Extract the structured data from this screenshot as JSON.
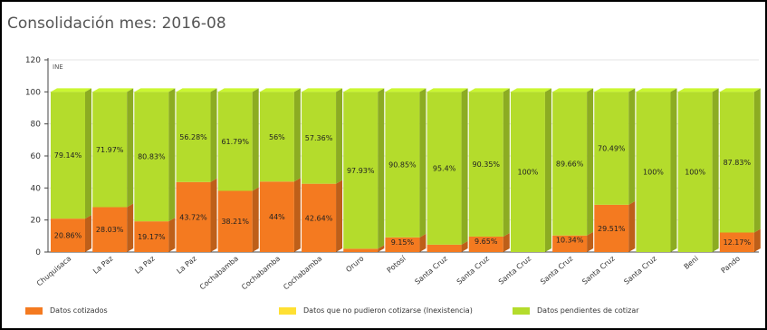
{
  "title": "Consolidación mes: 2016-08",
  "annotation": "INE",
  "colors": {
    "cotizados": "#f47a20",
    "inexistencia": "#ffe033",
    "pendientes": "#b4dc2c"
  },
  "chart_data": {
    "type": "bar",
    "stacked": true,
    "title": "Consolidación mes: 2016-08",
    "xlabel": "",
    "ylabel": "",
    "ylim": [
      0,
      120
    ],
    "yticks": [
      0,
      20,
      40,
      60,
      80,
      100,
      120
    ],
    "grid": true,
    "legend_position": "bottom",
    "categories": [
      "Chuquisaca",
      "La Paz",
      "La Paz",
      "La Paz",
      "Cochabamba",
      "Cochabamba",
      "Cochabamba",
      "Oruro",
      "Potosí",
      "Santa Cruz",
      "Santa Cruz",
      "Santa Cruz",
      "Santa Cruz",
      "Santa Cruz",
      "Santa Cruz",
      "Beni",
      "Pando"
    ],
    "series": [
      {
        "name": "Datos cotizados",
        "values": [
          20.86,
          28.03,
          19.17,
          43.72,
          38.21,
          44,
          42.64,
          2.07,
          9.15,
          4.6,
          9.65,
          0,
          10.34,
          29.51,
          0,
          0,
          12.17
        ],
        "labels": [
          "20.86%",
          "28.03%",
          "19.17%",
          "43.72%",
          "38.21%",
          "44%",
          "42.64%",
          "",
          "9.15%",
          "",
          "9.65%",
          "",
          "10.34%",
          "29.51%",
          "",
          "",
          "12.17%"
        ]
      },
      {
        "name": "Datos que no pudieron cotizarse (Inexistencia)",
        "values": [
          0,
          0,
          0,
          0,
          0,
          0,
          0,
          0,
          0,
          0,
          0,
          0,
          0,
          0,
          0,
          0,
          0
        ],
        "labels": [
          "",
          "",
          "",
          "",
          "",
          "",
          "",
          "",
          "",
          "",
          "",
          "",
          "",
          "",
          "",
          "",
          ""
        ]
      },
      {
        "name": "Datos pendientes de cotizar",
        "values": [
          79.14,
          71.97,
          80.83,
          56.28,
          61.79,
          56,
          57.36,
          97.93,
          90.85,
          95.4,
          90.35,
          100,
          89.66,
          70.49,
          100,
          100,
          87.83
        ],
        "labels": [
          "79.14%",
          "71.97%",
          "80.83%",
          "56.28%",
          "61.79%",
          "56%",
          "57.36%",
          "97.93%",
          "90.85%",
          "95.4%",
          "90.35%",
          "100%",
          "89.66%",
          "70.49%",
          "100%",
          "100%",
          "87.83%"
        ]
      }
    ]
  }
}
